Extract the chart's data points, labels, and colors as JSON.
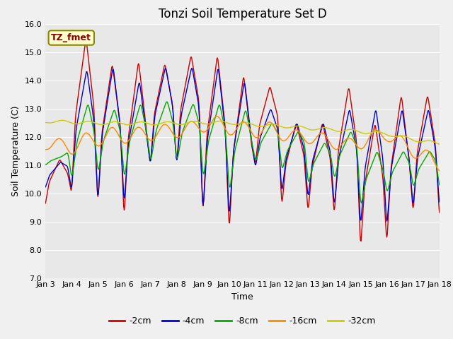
{
  "title": "Tonzi Soil Temperature Set D",
  "xlabel": "Time",
  "ylabel": "Soil Temperature (C)",
  "ylim": [
    7.0,
    16.0
  ],
  "yticks": [
    7.0,
    8.0,
    9.0,
    10.0,
    11.0,
    12.0,
    13.0,
    14.0,
    15.0,
    16.0
  ],
  "xtick_labels": [
    "Jan 3",
    "Jan 4",
    "Jan 5",
    "Jan 6",
    "Jan 7",
    "Jan 8",
    "Jan 9",
    "Jan 10",
    "Jan 11",
    "Jan 12",
    "Jan 13",
    "Jan 14",
    "Jan 15",
    "Jan 16",
    "Jan 17",
    "Jan 18"
  ],
  "legend_labels": [
    "-2cm",
    "-4cm",
    "-8cm",
    "-16cm",
    "-32cm"
  ],
  "line_colors": [
    "#cc0000",
    "#0000cc",
    "#00aa00",
    "#ff8800",
    "#cccc00"
  ],
  "annotation_text": "TZ_fmet",
  "annotation_bg": "#ffffcc",
  "annotation_border": "#888800",
  "fig_bg": "#f0f0f0",
  "plot_bg": "#e8e8e8",
  "grid_color": "#ffffff",
  "title_fontsize": 12,
  "label_fontsize": 9,
  "tick_fontsize": 8
}
